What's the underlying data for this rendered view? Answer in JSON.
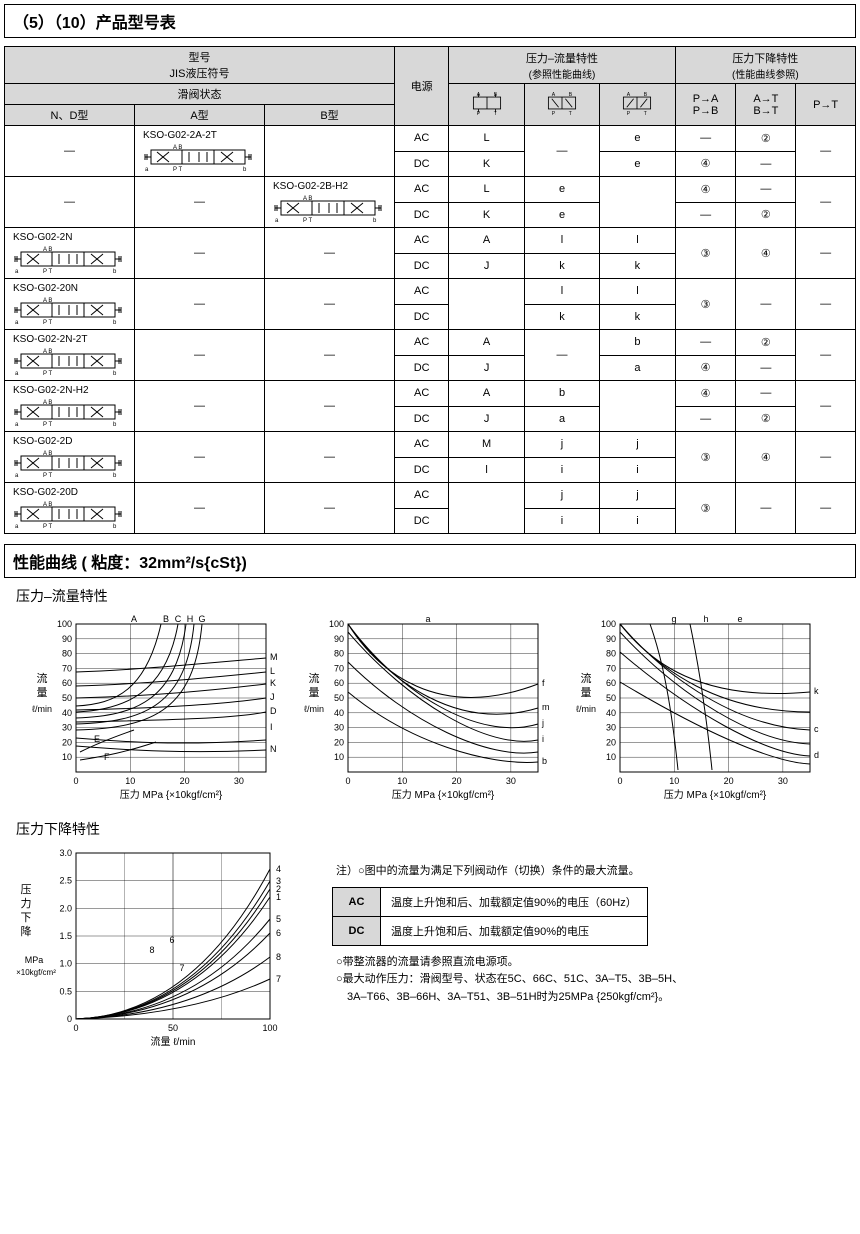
{
  "title_main": "（5）（10）产品型号表",
  "table": {
    "head": {
      "model_group": "型号",
      "jis_line": "JIS液压符号",
      "valve_state": "滑阀状态",
      "nd": "N、D型",
      "a": "A型",
      "b": "B型",
      "power": "电源",
      "pf_group": "压力–流量特性",
      "pf_sub": "(参照性能曲线)",
      "pd_group": "压力下降特性",
      "pd_sub": "(性能曲线参照)",
      "pd_c1a": "P→A",
      "pd_c1b": "P→B",
      "pd_c2a": "A→T",
      "pd_c2b": "B→T",
      "pd_c3": "P→T"
    },
    "ac": "AC",
    "dc": "DC",
    "rows": [
      {
        "nd": "—",
        "a": "KSO-G02-2A-2T",
        "b": "",
        "ac": [
          "L",
          "—",
          "e",
          "—",
          "②",
          "—"
        ],
        "dc": [
          "K",
          "",
          "e",
          "④",
          "—",
          ""
        ]
      },
      {
        "nd": "—",
        "a": "—",
        "b": "KSO-G02-2B-H2",
        "ac": [
          "L",
          "e",
          "",
          "④",
          "—",
          "—"
        ],
        "dc": [
          "K",
          "e",
          "",
          "—",
          "②",
          ""
        ]
      },
      {
        "nd": "KSO-G02-2N",
        "a": "—",
        "b": "—",
        "ac": [
          "A",
          "l",
          "l",
          "③",
          "④",
          "—"
        ],
        "dc": [
          "J",
          "k",
          "k",
          "",
          "",
          ""
        ]
      },
      {
        "nd": "KSO-G02-20N",
        "a": "—",
        "b": "—",
        "ac": [
          "",
          "l",
          "l",
          "③",
          "—",
          "—"
        ],
        "dc": [
          "",
          "k",
          "k",
          "",
          "",
          ""
        ]
      },
      {
        "nd": "KSO-G02-2N-2T",
        "a": "—",
        "b": "—",
        "ac": [
          "A",
          "—",
          "b",
          "—",
          "②",
          "—"
        ],
        "dc": [
          "J",
          "",
          "a",
          "④",
          "—",
          ""
        ]
      },
      {
        "nd": "KSO-G02-2N-H2",
        "a": "—",
        "b": "—",
        "ac": [
          "A",
          "b",
          "",
          "④",
          "—",
          "—"
        ],
        "dc": [
          "J",
          "a",
          "",
          "—",
          "②",
          ""
        ]
      },
      {
        "nd": "KSO-G02-2D",
        "a": "—",
        "b": "—",
        "ac": [
          "M",
          "j",
          "j",
          "③",
          "④",
          "—"
        ],
        "dc": [
          "l",
          "i",
          "i",
          "",
          "",
          ""
        ]
      },
      {
        "nd": "KSO-G02-20D",
        "a": "—",
        "b": "—",
        "ac": [
          "",
          "j",
          "j",
          "③",
          "—",
          "—"
        ],
        "dc": [
          "",
          "i",
          "i",
          "",
          "",
          ""
        ]
      }
    ]
  },
  "curves_title": "性能曲线 ( 粘度：32mm²/s{cSt})",
  "chart_pf_title": "压力–流量特性",
  "chart_pd_title": "压力下降特性",
  "charts": {
    "axis_y_label": "流\n量",
    "axis_y_unit": "ℓ/min",
    "axis_x_label": "压力 MPa {×10kgf/cm²}",
    "y_ticks": [
      "10",
      "20",
      "30",
      "40",
      "50",
      "60",
      "70",
      "80",
      "90",
      "100"
    ],
    "x_ticks": [
      "0",
      "10",
      "20",
      "30"
    ],
    "chart1_labels": [
      "A",
      "B",
      "C",
      "H",
      "G",
      "M",
      "L",
      "K",
      "J",
      "D",
      "I",
      "N",
      "E",
      "F"
    ],
    "chart2_labels": [
      "a",
      "f",
      "m",
      "j",
      "i",
      "b"
    ],
    "chart3_labels": [
      "g",
      "h",
      "e",
      "k",
      "c",
      "d"
    ]
  },
  "pd_chart": {
    "y_label": "压\n力\n下\n降",
    "y_unit": "MPa\n×10kgf/cm²",
    "y_ticks": [
      "0",
      "0.5",
      "1.0",
      "1.5",
      "2.0",
      "2.5",
      "3.0"
    ],
    "x_ticks": [
      "0",
      "50",
      "100"
    ],
    "x_label": "流量 ℓ/min",
    "curve_labels": [
      "4",
      "3",
      "2",
      "1",
      "5",
      "6",
      "8",
      "7"
    ]
  },
  "notes": {
    "heading": "注）○图中的流量为满足下列阀动作（切换）条件的最大流量。",
    "ac_row": "温度上升饱和后、加载额定值90%的电压（60Hz）",
    "dc_row": "温度上升饱和后、加载额定值90%的电压",
    "foot1": "○带整流器的流量请参照直流电源项。",
    "foot2": "○最大动作压力：滑阀型号、状态在5C、66C、51C、3A–T5、3B–5H、",
    "foot3": "　3A–T66、3B–66H、3A–T51、3B–51H时为25MPa {250kgf/cm²}。"
  }
}
